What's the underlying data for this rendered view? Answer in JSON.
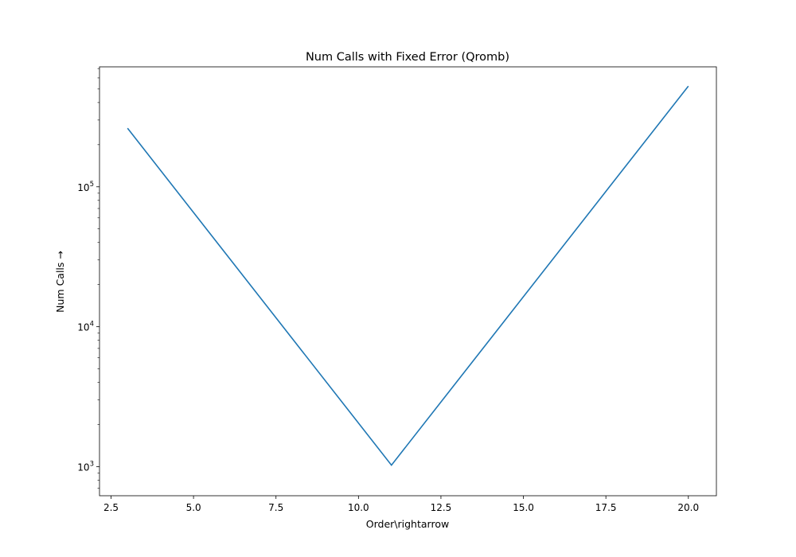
{
  "chart_data": {
    "type": "line",
    "title": "Num Calls with Fixed Error (Qromb)",
    "xlabel": "Order\\rightarrow",
    "ylabel": "Num Calls →",
    "xlim": [
      2.15,
      20.85
    ],
    "ylim": [
      620,
      720000
    ],
    "yscale": "log",
    "grid": false,
    "x_ticks": [
      {
        "value": 2.5,
        "label": "2.5"
      },
      {
        "value": 5.0,
        "label": "5.0"
      },
      {
        "value": 7.5,
        "label": "7.5"
      },
      {
        "value": 10.0,
        "label": "10.0"
      },
      {
        "value": 12.5,
        "label": "12.5"
      },
      {
        "value": 15.0,
        "label": "15.0"
      },
      {
        "value": 17.5,
        "label": "17.5"
      },
      {
        "value": 20.0,
        "label": "20.0"
      }
    ],
    "y_ticks": [
      {
        "value": 1000,
        "base": "10",
        "exp": "3"
      },
      {
        "value": 10000,
        "base": "10",
        "exp": "4"
      },
      {
        "value": 100000,
        "base": "10",
        "exp": "5"
      }
    ],
    "series": [
      {
        "color": "#1f77b4",
        "x": [
          3,
          11,
          20
        ],
        "y": [
          262145,
          1025,
          524289
        ]
      }
    ]
  }
}
